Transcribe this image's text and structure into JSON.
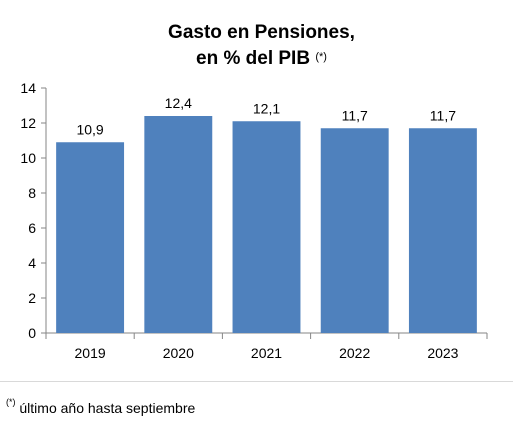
{
  "title_line1": "Gasto en Pensiones,",
  "title_line2": "en % del PIB",
  "title_mark": "(*)",
  "footnote_mark": "(*)",
  "footnote_text": " último año hasta septiembre",
  "bar_color": "#4f81bd",
  "chart_data": {
    "type": "bar",
    "title": "Gasto en Pensiones, en % del PIB (*)",
    "categories": [
      "2019",
      "2020",
      "2021",
      "2022",
      "2023"
    ],
    "values": [
      10.9,
      12.4,
      12.1,
      11.7,
      11.7
    ],
    "value_labels": [
      "10,9",
      "12,4",
      "12,1",
      "11,7",
      "11,7"
    ],
    "y_ticks": [
      "0",
      "2",
      "4",
      "6",
      "8",
      "10",
      "12",
      "14"
    ],
    "ylim": [
      0,
      14
    ],
    "grid": false,
    "legend": "none"
  }
}
